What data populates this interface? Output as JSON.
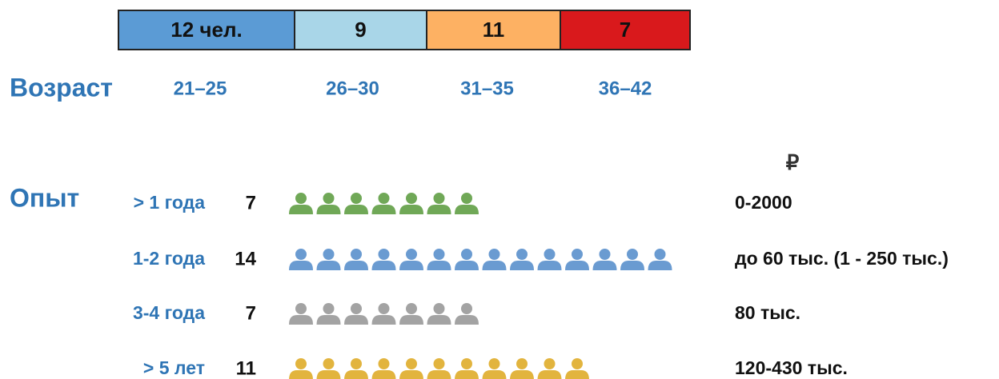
{
  "age": {
    "label": "Возраст",
    "segments": [
      {
        "text": "12 чел.",
        "range": "21–25",
        "color": "#5b9bd5"
      },
      {
        "text": "9",
        "range": "26–30",
        "color": "#a9d6e8"
      },
      {
        "text": "11",
        "range": "31–35",
        "color": "#fdb163"
      },
      {
        "text": "7",
        "range": "36–42",
        "color": "#d9191c"
      }
    ]
  },
  "experience": {
    "label": "Опыт",
    "currency": "₽",
    "rows": [
      {
        "label": "> 1 года",
        "count": 7,
        "color": "#70a857",
        "salary": "0-2000"
      },
      {
        "label": "1-2 года",
        "count": 14,
        "color": "#6a9bd1",
        "salary": "до 60 тыс. (1 - 250 тыс.)"
      },
      {
        "label": "3-4 года",
        "count": 7,
        "color": "#a3a3a3",
        "salary": "80 тыс."
      },
      {
        "label": "> 5 лет",
        "count": 11,
        "color": "#e2b43e",
        "salary": "120-430 тыс."
      }
    ]
  }
}
